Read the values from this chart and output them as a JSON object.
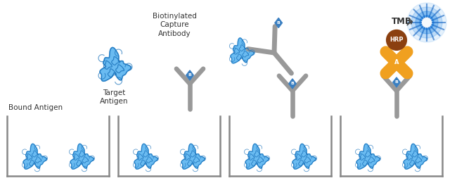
{
  "background_color": "#ffffff",
  "labels": {
    "bound_antigen": "Bound Antigen",
    "target_antigen": "Target\nAntigen",
    "biotinylated": "Biotinylated\nCapture\nAntibody",
    "tmb": "TMB",
    "hrp": "HRP",
    "streptavidin_label": "A",
    "biotin_label": "B"
  },
  "colors": {
    "antigen_body": "#5ab4f0",
    "antigen_dark": "#1a72bb",
    "antigen_mid": "#3090d0",
    "antibody_color": "#999999",
    "biotin_diamond": "#3a7fc1",
    "streptavidin": "#f0a020",
    "hrp_brown": "#8B4010",
    "tmb_blue": "#3090e8",
    "tmb_white": "#ffffff",
    "text_color": "#333333",
    "well_color": "#888888"
  },
  "figsize": [
    6.5,
    2.6
  ],
  "dpi": 100
}
